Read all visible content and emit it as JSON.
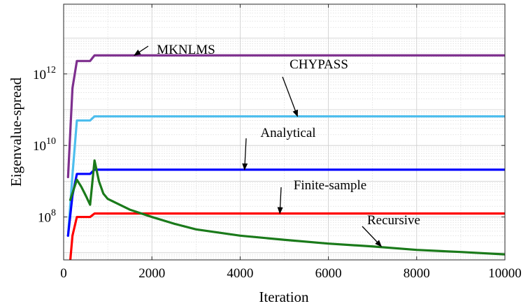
{
  "chart_data": {
    "type": "line",
    "title": "",
    "xlabel": "Iteration",
    "ylabel": "Eigenvalue-spread",
    "xlim": [
      0,
      10000
    ],
    "ylim_log10": [
      6.8,
      13.95
    ],
    "yscale": "log",
    "grid": true,
    "minor_grid": true,
    "legend": "none (arrow annotations)",
    "x_ticks": [
      {
        "value": 0,
        "label": "0"
      },
      {
        "value": 2000,
        "label": "2000"
      },
      {
        "value": 4000,
        "label": "4000"
      },
      {
        "value": 6000,
        "label": "6000"
      },
      {
        "value": 8000,
        "label": "8000"
      },
      {
        "value": 10000,
        "label": "10000"
      }
    ],
    "y_ticks": [
      {
        "value": 100000000.0,
        "base": "10",
        "exp": "8"
      },
      {
        "value": 10000000000.0,
        "base": "10",
        "exp": "10"
      },
      {
        "value": 1000000000000.0,
        "base": "10",
        "exp": "12"
      }
    ],
    "series": [
      {
        "name": "MKNLMS",
        "color": "#7e2f8e",
        "points": [
          [
            100,
            1300000000.0
          ],
          [
            200,
            400000000000.0
          ],
          [
            300,
            2300000000000.0
          ],
          [
            600,
            2300000000000.0
          ],
          [
            700,
            3300000000000.0
          ],
          [
            10000,
            3300000000000.0
          ]
        ]
      },
      {
        "name": "CHYPASS",
        "color": "#4dbeee",
        "points": [
          [
            100,
            30000000.0
          ],
          [
            200,
            1500000000.0
          ],
          [
            300,
            50000000000.0
          ],
          [
            600,
            50000000000.0
          ],
          [
            700,
            65000000000.0
          ],
          [
            10000,
            65000000000.0
          ]
        ]
      },
      {
        "name": "Analytical",
        "color": "#0000ff",
        "points": [
          [
            100,
            30000000.0
          ],
          [
            200,
            400000000.0
          ],
          [
            300,
            1600000000.0
          ],
          [
            600,
            1600000000.0
          ],
          [
            700,
            2100000000.0
          ],
          [
            10000,
            2100000000.0
          ]
        ]
      },
      {
        "name": "Finite-sample",
        "color": "#ff0000",
        "points": [
          [
            150,
            6000000.0
          ],
          [
            200,
            30000000.0
          ],
          [
            300,
            100000000.0
          ],
          [
            600,
            100000000.0
          ],
          [
            700,
            125000000.0
          ],
          [
            10000,
            125000000.0
          ]
        ]
      },
      {
        "name": "Recursive",
        "color": "#1a7a1a",
        "points": [
          [
            150,
            300000000.0
          ],
          [
            300,
            1100000000.0
          ],
          [
            400,
            700000000.0
          ],
          [
            500,
            400000000.0
          ],
          [
            600,
            220000000.0
          ],
          [
            700,
            3800000000.0
          ],
          [
            800,
            1000000000.0
          ],
          [
            900,
            450000000.0
          ],
          [
            1000,
            320000000.0
          ],
          [
            1500,
            160000000.0
          ],
          [
            2000,
            100000000.0
          ],
          [
            2500,
            65000000.0
          ],
          [
            3000,
            45000000.0
          ],
          [
            4000,
            30000000.0
          ],
          [
            5000,
            23000000.0
          ],
          [
            6000,
            18000000.0
          ],
          [
            7000,
            15000000.0
          ],
          [
            8000,
            12000000.0
          ],
          [
            9000,
            10500000.0
          ],
          [
            10000,
            9000000.0
          ]
        ]
      }
    ],
    "annotations": [
      {
        "text": "MKNLMS",
        "target": [
          1600,
          3300000000000.0
        ]
      },
      {
        "text": "CHYPASS",
        "target": [
          5300,
          65000000000.0
        ]
      },
      {
        "text": "Analytical",
        "target": [
          4100,
          2100000000.0
        ]
      },
      {
        "text": "Finite-sample",
        "target": [
          4900,
          125000000.0
        ]
      },
      {
        "text": "Recursive",
        "target": [
          7200,
          15000000.0
        ]
      }
    ]
  }
}
